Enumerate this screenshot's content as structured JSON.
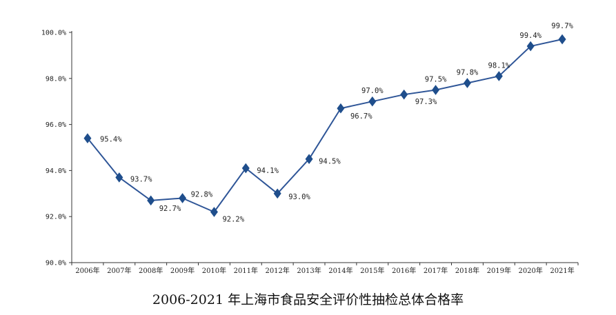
{
  "chart_data": {
    "type": "line",
    "title": "2006-2021 年上海市食品安全评价性抽检总体合格率",
    "x": [
      "2006年",
      "2007年",
      "2008年",
      "2009年",
      "2010年",
      "2011年",
      "2012年",
      "2013年",
      "2014年",
      "2015年",
      "2016年",
      "2017年",
      "2018年",
      "2019年",
      "2020年",
      "2021年"
    ],
    "series": [
      {
        "values": [
          95.4,
          93.7,
          92.7,
          92.8,
          92.2,
          94.1,
          93.0,
          94.5,
          96.7,
          97.0,
          97.3,
          97.5,
          97.8,
          98.1,
          99.4,
          99.7
        ],
        "labels": [
          "95.4%",
          "93.7%",
          "92.7%",
          "92.8%",
          "92.2%",
          "94.1%",
          "93.0%",
          "94.5%",
          "96.7%",
          "97.0%",
          "97.3%",
          "97.5%",
          "97.8%",
          "98.1%",
          "99.4%",
          "99.7%"
        ],
        "color": "#2e5597"
      }
    ],
    "yticks": [
      "90.0%",
      "92.0%",
      "94.0%",
      "96.0%",
      "98.0%",
      "100.0%"
    ],
    "ylim": [
      90,
      100
    ],
    "grid": false,
    "legend": "none"
  }
}
